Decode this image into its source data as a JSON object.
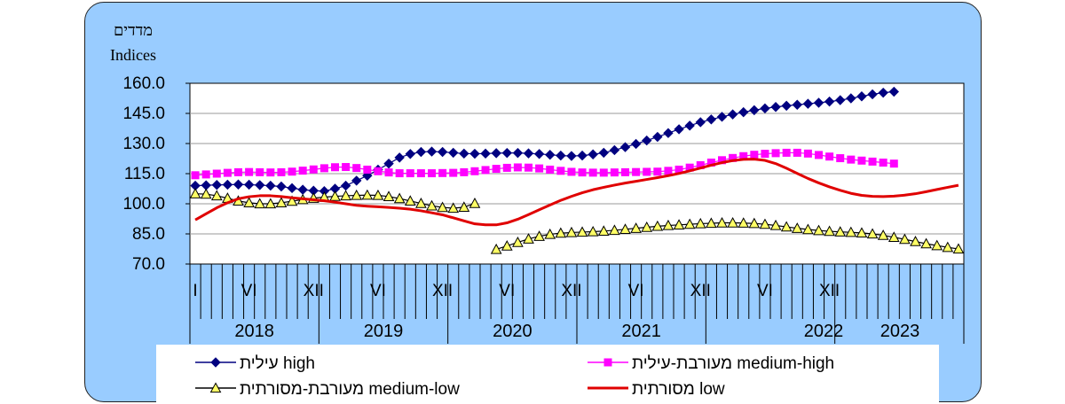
{
  "chart_data": {
    "type": "line",
    "y_label_he": "מדדים",
    "y_label_en": "Indices",
    "ylim": [
      70,
      160
    ],
    "y_ticks": [
      "160.0",
      "145.0",
      "130.0",
      "115.0",
      "100.0",
      "85.0",
      "70.0"
    ],
    "grid": true,
    "month_labels": [
      {
        "month": 1,
        "label": "I"
      },
      {
        "month": 6,
        "label": "VI"
      },
      {
        "month": 12,
        "label": "XII"
      },
      {
        "month": 18,
        "label": "VI"
      },
      {
        "month": 24,
        "label": "XII"
      },
      {
        "month": 30,
        "label": "VI"
      },
      {
        "month": 36,
        "label": "XII"
      },
      {
        "month": 42,
        "label": "VI"
      },
      {
        "month": 48,
        "label": "XII"
      },
      {
        "month": 54,
        "label": "VI"
      },
      {
        "month": 60,
        "label": "XII"
      }
    ],
    "year_labels": [
      "2018",
      "2019",
      "2020",
      "2021",
      "2022",
      "2023"
    ],
    "series": [
      {
        "name": "עילית high",
        "key": "high",
        "color": "#000080",
        "marker": "diamond",
        "x_start": 1,
        "values": [
          109,
          109.2,
          109.4,
          109.5,
          109.6,
          109.5,
          109.3,
          109,
          108.6,
          107.8,
          107,
          106.5,
          106.3,
          107.5,
          109,
          111.5,
          114,
          117,
          120,
          123,
          124.8,
          125.8,
          126,
          125.8,
          125.4,
          125,
          124.9,
          125,
          125.2,
          125.3,
          125.3,
          125.1,
          124.8,
          124.4,
          124,
          123.8,
          124,
          124.6,
          125.4,
          126.7,
          128.2,
          129.8,
          131.5,
          133.3,
          135.2,
          137.1,
          138.9,
          140.6,
          142,
          143.3,
          144.5,
          145.6,
          146.6,
          147.5,
          148.2,
          148.8,
          149.3,
          149.8,
          150.3,
          150.9,
          151.6,
          152.5,
          153.5,
          154.5,
          155.3,
          155.8
        ]
      },
      {
        "name": "מעורבת-עילית medium-high",
        "key": "medium_high",
        "color": "#ff00ff",
        "marker": "square",
        "x_start": 1,
        "values": [
          114.2,
          114.6,
          115,
          115.4,
          115.7,
          115.8,
          115.7,
          115.6,
          115.7,
          116,
          116.5,
          117.1,
          117.7,
          118.2,
          118.3,
          117.8,
          117,
          116.2,
          115.6,
          115.2,
          115.2,
          115.2,
          115.2,
          115.3,
          115.4,
          115.7,
          116.2,
          116.8,
          117.4,
          117.9,
          118.1,
          118,
          117.6,
          117,
          116.4,
          115.9,
          115.6,
          115.5,
          115.5,
          115.6,
          115.7,
          115.8,
          115.9,
          116,
          116.4,
          117,
          118,
          119.2,
          120.5,
          121.7,
          122.8,
          123.7,
          124.4,
          124.9,
          125.2,
          125.4,
          125.4,
          125,
          124.3,
          123.5,
          122.7,
          122,
          121.5,
          121,
          120.5,
          120
        ]
      },
      {
        "name": "מעורבת-מסורתית medium-low",
        "key": "medium_low",
        "color": "#ffff66",
        "marker": "triangle",
        "x_start": 1,
        "values": [
          105,
          104.8,
          104,
          102.8,
          101.4,
          100.5,
          100,
          100,
          100.5,
          101.3,
          102.1,
          102.8,
          103.3,
          103.7,
          104,
          104.2,
          104.3,
          104.2,
          103.6,
          102.6,
          101.4,
          100.2,
          99,
          98.2,
          97.8,
          98.3,
          100.2,
          null,
          77.3,
          79,
          80.8,
          82.5,
          83.8,
          84.8,
          85.4,
          85.7,
          85.9,
          86.1,
          86.4,
          86.8,
          87.3,
          87.8,
          88.3,
          88.8,
          89.2,
          89.5,
          89.8,
          90.1,
          90.3,
          90.5,
          90.5,
          90.4,
          90.2,
          89.8,
          89.2,
          88.5,
          87.8,
          87.2,
          86.7,
          86.3,
          86,
          85.8,
          85.5,
          85,
          84.3,
          83.3,
          82.3,
          81.2,
          80.1,
          79.2,
          78.3,
          77.5
        ]
      },
      {
        "name": "מסורתית low",
        "key": "low",
        "color": "#e00000",
        "marker": "none",
        "x_start": 1,
        "values": [
          92,
          95,
          98,
          100.5,
          102.5,
          103.5,
          104,
          104,
          103.6,
          103,
          102.5,
          102,
          101.5,
          100.8,
          100,
          99.2,
          98.8,
          98.5,
          98.2,
          97.8,
          97.3,
          96.5,
          95.5,
          94.5,
          93,
          91.5,
          90,
          89.5,
          89.5,
          90.5,
          92.3,
          94.6,
          97,
          99.4,
          101.7,
          103.7,
          105.5,
          107,
          108.2,
          109.3,
          110.3,
          111.2,
          112.1,
          113,
          114,
          115.1,
          116.4,
          117.8,
          119.2,
          120.5,
          121.5,
          122.1,
          122.2,
          121.6,
          120,
          117.7,
          115.1,
          112.6,
          110.4,
          108.4,
          106.7,
          105.2,
          104.2,
          103.7,
          103.6,
          103.8,
          104.3,
          105,
          106,
          107.1,
          108.2,
          109.2,
          110
        ]
      }
    ],
    "legend": [
      {
        "key": "high",
        "label": "עילית high"
      },
      {
        "key": "medium_high",
        "label": "מעורבת-עילית medium-high"
      },
      {
        "key": "medium_low",
        "label": "מעורבת-מסורתית medium-low"
      },
      {
        "key": "low",
        "label": "מסורתית low"
      }
    ]
  }
}
